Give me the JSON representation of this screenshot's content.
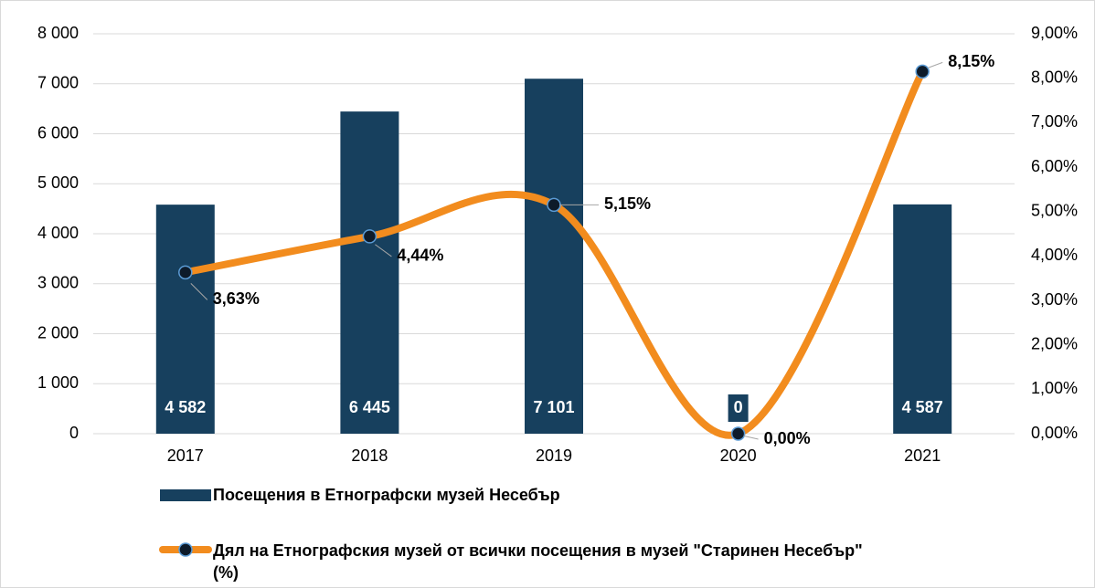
{
  "chart_data": {
    "type": "bar",
    "categories": [
      "2017",
      "2018",
      "2019",
      "2020",
      "2021"
    ],
    "series": [
      {
        "name": "Посещения в Етнографски музей Несебър",
        "type": "bar",
        "color": "#17405e",
        "values": [
          4582,
          6445,
          7101,
          0,
          4587
        ],
        "value_labels": [
          "4 582",
          "6 445",
          "7 101",
          "0",
          "4 587"
        ]
      },
      {
        "name": "Дял на Етнографския музей от всички посещения в музей \"Старинен Несебър\" (%)",
        "type": "line",
        "axis": "y2",
        "color": "#f28c1e",
        "values": [
          3.63,
          4.44,
          5.15,
          0,
          8.15
        ],
        "value_labels": [
          "3,63%",
          "4,44%",
          "5,15%",
          "0,00%",
          "8,15%"
        ]
      }
    ],
    "ylim": [
      0,
      8000
    ],
    "yticks": [
      0,
      {
        "value": 1000,
        "label": "1 000"
      },
      {
        "value": 2000,
        "label": "2 000"
      },
      {
        "value": 3000,
        "label": "3 000"
      },
      {
        "value": 4000,
        "label": "4 000"
      },
      {
        "value": 5000,
        "label": "5 000"
      },
      {
        "value": 6000,
        "label": "6 000"
      },
      {
        "value": 7000,
        "label": "7 000"
      },
      {
        "value": 8000,
        "label": "8 000"
      }
    ],
    "y2lim": [
      0,
      9
    ],
    "y2ticks": [
      {
        "value": 0,
        "label": "0,00%"
      },
      {
        "value": 1,
        "label": "1,00%"
      },
      {
        "value": 2,
        "label": "2,00%"
      },
      {
        "value": 3,
        "label": "3,00%"
      },
      {
        "value": 4,
        "label": "4,00%"
      },
      {
        "value": 5,
        "label": "5,00%"
      },
      {
        "value": 6,
        "label": "6,00%"
      },
      {
        "value": 7,
        "label": "7,00%"
      },
      {
        "value": 8,
        "label": "8,00%"
      },
      {
        "value": 9,
        "label": "9,00%"
      }
    ],
    "grid": true,
    "legend": "bottom"
  }
}
